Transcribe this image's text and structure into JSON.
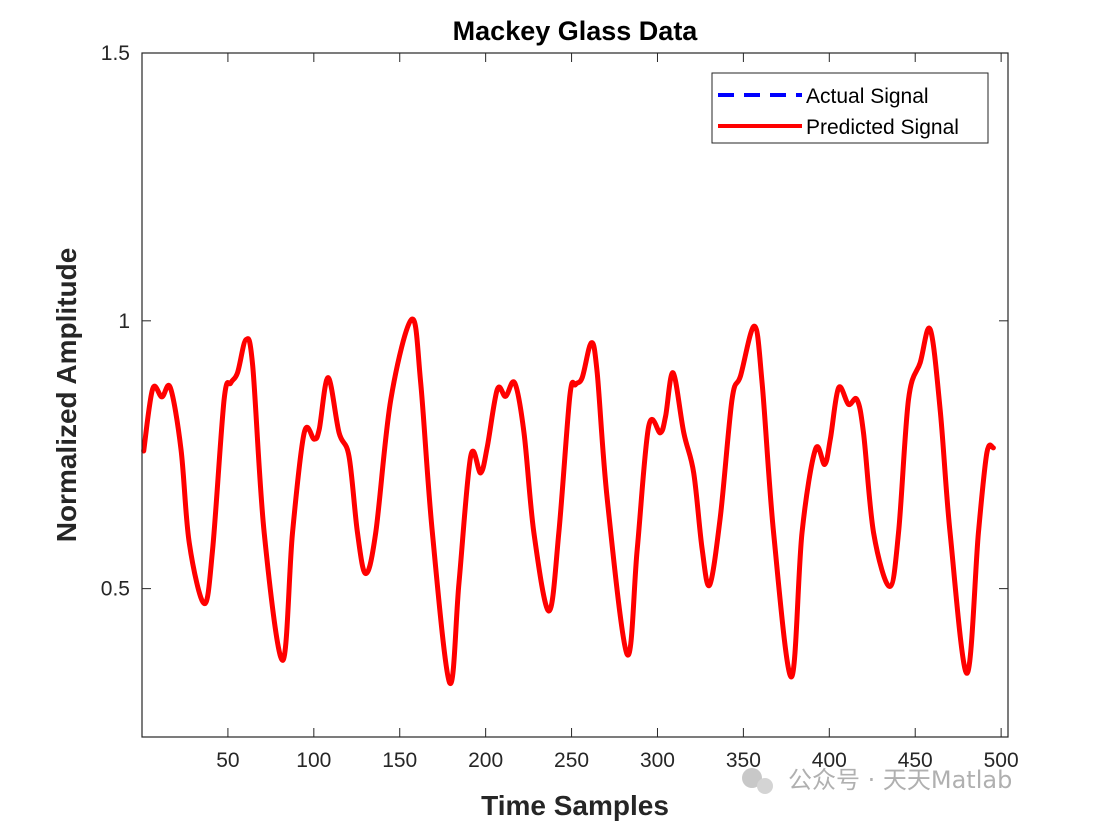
{
  "chart_data": {
    "type": "line",
    "title": "Mackey Glass Data",
    "xlabel": "Time Samples",
    "ylabel": "Normalized Amplitude",
    "xlim": [
      0,
      504
    ],
    "ylim": [
      0.223,
      1.5
    ],
    "xticks": [
      50,
      100,
      150,
      200,
      250,
      300,
      350,
      400,
      450,
      500
    ],
    "yticks": [
      0.5,
      1,
      1.5
    ],
    "ytick_labels": [
      "0.5",
      "1",
      "1.5"
    ],
    "grid": false,
    "legend_position": "top-right",
    "x": [
      1,
      6.2,
      11.6,
      16.5,
      22.7,
      27.5,
      36.2,
      41.1,
      47.8,
      51.7,
      55.6,
      60.5,
      64.4,
      71.1,
      81.8,
      87.6,
      94.4,
      100.2,
      103.1,
      108.3,
      114.7,
      120.5,
      125.4,
      130.2,
      136,
      144.8,
      157,
      162.2,
      169,
      179.1,
      184.5,
      191.3,
      197.1,
      201,
      206.8,
      211.6,
      216.9,
      222.3,
      228.1,
      236.8,
      242.6,
      249,
      252.3,
      256.2,
      261.5,
      264.9,
      270.8,
      282.4,
      288.2,
      294.9,
      301.7,
      304.7,
      309.1,
      315.3,
      321.1,
      326,
      330.4,
      336.6,
      343.4,
      348.3,
      356.4,
      360.9,
      367.6,
      377.9,
      384.1,
      391.9,
      397.3,
      400.6,
      405.4,
      411.2,
      416.1,
      419.9,
      425.8,
      435.1,
      440.3,
      446.1,
      452.9,
      458.7,
      464.5,
      470.3,
      480.1,
      486.8,
      491.7,
      495.5
    ],
    "series": [
      {
        "name": "Actual Signal",
        "color": "#0000ff",
        "style": "dashed",
        "values": [
          0.757,
          0.873,
          0.858,
          0.875,
          0.76,
          0.585,
          0.472,
          0.573,
          0.853,
          0.884,
          0.903,
          0.965,
          0.916,
          0.604,
          0.366,
          0.604,
          0.791,
          0.779,
          0.797,
          0.894,
          0.791,
          0.747,
          0.604,
          0.528,
          0.604,
          0.853,
          1.003,
          0.884,
          0.604,
          0.324,
          0.511,
          0.747,
          0.716,
          0.766,
          0.872,
          0.859,
          0.884,
          0.791,
          0.604,
          0.458,
          0.604,
          0.859,
          0.881,
          0.894,
          0.959,
          0.903,
          0.666,
          0.377,
          0.573,
          0.803,
          0.791,
          0.822,
          0.903,
          0.791,
          0.716,
          0.573,
          0.507,
          0.635,
          0.853,
          0.897,
          0.99,
          0.884,
          0.604,
          0.335,
          0.604,
          0.76,
          0.732,
          0.779,
          0.875,
          0.844,
          0.853,
          0.791,
          0.604,
          0.504,
          0.604,
          0.853,
          0.922,
          0.984,
          0.835,
          0.604,
          0.342,
          0.604,
          0.754,
          0.763
        ]
      },
      {
        "name": "Predicted Signal",
        "color": "#ff0000",
        "style": "solid",
        "values": [
          0.757,
          0.873,
          0.858,
          0.875,
          0.76,
          0.585,
          0.472,
          0.573,
          0.853,
          0.884,
          0.903,
          0.965,
          0.916,
          0.604,
          0.366,
          0.604,
          0.791,
          0.779,
          0.797,
          0.894,
          0.791,
          0.747,
          0.604,
          0.528,
          0.604,
          0.853,
          1.003,
          0.884,
          0.604,
          0.324,
          0.511,
          0.747,
          0.716,
          0.766,
          0.872,
          0.859,
          0.884,
          0.791,
          0.604,
          0.458,
          0.604,
          0.859,
          0.881,
          0.894,
          0.959,
          0.903,
          0.666,
          0.377,
          0.573,
          0.803,
          0.791,
          0.822,
          0.903,
          0.791,
          0.716,
          0.573,
          0.507,
          0.635,
          0.853,
          0.897,
          0.99,
          0.884,
          0.604,
          0.335,
          0.604,
          0.76,
          0.732,
          0.779,
          0.875,
          0.844,
          0.853,
          0.791,
          0.604,
          0.504,
          0.604,
          0.853,
          0.922,
          0.984,
          0.835,
          0.604,
          0.342,
          0.604,
          0.754,
          0.763
        ]
      }
    ]
  },
  "watermark": "公众号 · 天天Matlab"
}
